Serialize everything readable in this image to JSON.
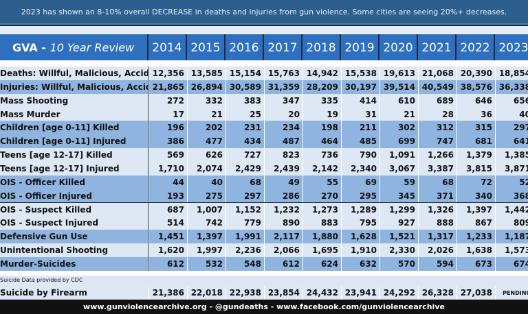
{
  "header": {
    "banner": "2023 has shown an 8-10% overall DECREASE in deaths and injuries from gun violence. Some cities are seeing 20%+ decreases."
  },
  "table": {
    "title": "GVA - ",
    "subtitle": "10 Year Review",
    "years": [
      "2014",
      "2015",
      "2016",
      "2017",
      "2018",
      "2019",
      "2020",
      "2021",
      "2022",
      "2023"
    ],
    "rows": [
      {
        "label": "Deaths: Willful, Malicious, Accidental",
        "values": [
          "12,356",
          "13,585",
          "15,154",
          "15,763",
          "14,942",
          "15,538",
          "19,613",
          "21,068",
          "20,390",
          "18,854"
        ]
      },
      {
        "label": "Injuries: Willful, Malicious, Accidental",
        "values": [
          "21,865",
          "26,894",
          "30,589",
          "31,359",
          "28,209",
          "30,197",
          "39,514",
          "40,549",
          "38,576",
          "36,338"
        ]
      },
      {
        "label": "Mass Shooting",
        "values": [
          "272",
          "332",
          "383",
          "347",
          "335",
          "414",
          "610",
          "689",
          "646",
          "656"
        ]
      },
      {
        "label": "Mass Murder",
        "values": [
          "17",
          "21",
          "25",
          "20",
          "19",
          "31",
          "21",
          "28",
          "36",
          "40"
        ]
      },
      {
        "label": "Children [age 0-11] Killed",
        "values": [
          "196",
          "202",
          "231",
          "234",
          "198",
          "211",
          "302",
          "312",
          "315",
          "297"
        ]
      },
      {
        "label": "Children [age 0-11] Injured",
        "values": [
          "386",
          "477",
          "434",
          "487",
          "464",
          "485",
          "699",
          "747",
          "681",
          "641"
        ]
      },
      {
        "label": "Teens [age 12-17] Killed",
        "values": [
          "569",
          "626",
          "727",
          "823",
          "736",
          "790",
          "1,091",
          "1,266",
          "1,379",
          "1,385"
        ]
      },
      {
        "label": "Teens [age 12-17] Injured",
        "values": [
          "1,710",
          "2,074",
          "2,429",
          "2,439",
          "2,142",
          "2,340",
          "3,067",
          "3,387",
          "3,815",
          "3,871"
        ]
      },
      {
        "label": "OIS - Officer Killed",
        "values": [
          "44",
          "40",
          "68",
          "49",
          "55",
          "69",
          "59",
          "68",
          "72",
          "52"
        ]
      },
      {
        "label": "OIS - Officer Injured",
        "values": [
          "193",
          "275",
          "297",
          "286",
          "270",
          "295",
          "345",
          "371",
          "340",
          "368"
        ]
      },
      {
        "label": "OIS - Suspect Killed",
        "values": [
          "687",
          "1,007",
          "1,152",
          "1,232",
          "1,273",
          "1,289",
          "1,299",
          "1,326",
          "1,397",
          "1,442"
        ]
      },
      {
        "label": "OIS - Suspect Injured",
        "values": [
          "514",
          "742",
          "779",
          "890",
          "883",
          "795",
          "927",
          "888",
          "867",
          "809"
        ]
      },
      {
        "label": "Defensive Gun Use",
        "values": [
          "1,451",
          "1,397",
          "1,991",
          "2,117",
          "1,880",
          "1,628",
          "1,521",
          "1,317",
          "1,233",
          "1,187"
        ]
      },
      {
        "label": "Unintentional Shooting",
        "values": [
          "1,620",
          "1,997",
          "2,236",
          "2,066",
          "1,695",
          "1,910",
          "2,330",
          "2,026",
          "1,638",
          "1,573"
        ]
      },
      {
        "label": "Murder-Suicides",
        "values": [
          "612",
          "532",
          "548",
          "612",
          "624",
          "632",
          "570",
          "594",
          "673",
          "674"
        ]
      }
    ]
  },
  "suicide": {
    "note": "Suicide Data provided by CDC",
    "label": "Suicide by Firearm",
    "values": [
      "21,386",
      "22,018",
      "22,938",
      "23,854",
      "24,432",
      "23,941",
      "24,292",
      "26,328",
      "27,038",
      "PENDING"
    ]
  },
  "footer": {
    "text": "www.gunviolencearchive.org  -  @gundeaths  -  www.facebook.com/gunviolencearchive"
  }
}
